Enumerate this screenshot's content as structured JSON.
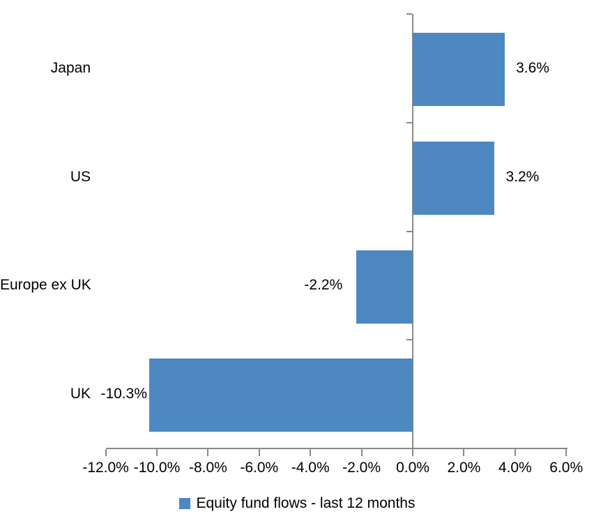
{
  "chart_data": {
    "type": "bar",
    "orientation": "horizontal",
    "title": "",
    "categories": [
      "Japan",
      "US",
      "Europe ex UK",
      "UK"
    ],
    "values": [
      3.6,
      3.2,
      -2.2,
      -10.3
    ],
    "value_labels": [
      "3.6%",
      "3.2%",
      "-2.2%",
      "-10.3%"
    ],
    "x_axis": {
      "min": -12,
      "max": 6,
      "step": 2,
      "tick_labels": [
        "-12.0%",
        "-10.0%",
        "-8.0%",
        "-6.0%",
        "-4.0%",
        "-2.0%",
        "0.0%",
        "2.0%",
        "4.0%",
        "6.0%"
      ]
    },
    "legend": {
      "label": "Equity fund flows - last 12 months",
      "position": "bottom"
    },
    "colors": {
      "bar": "#4D88C1",
      "axis": "#898989",
      "text": "#000000",
      "background": "#FFFFFF"
    },
    "grid": false
  }
}
